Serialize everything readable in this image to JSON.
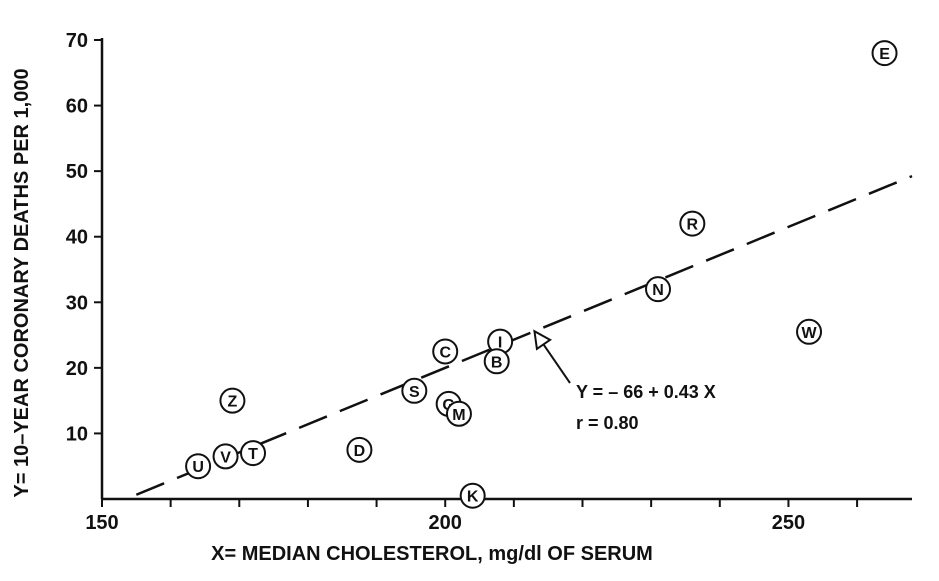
{
  "chart_data": {
    "type": "scatter",
    "xlabel": "X= MEDIAN CHOLESTEROL, mg/dl OF SERUM",
    "ylabel": "Y= 10–YEAR CORONARY DEATHS PER 1,000",
    "xlim": [
      150,
      268
    ],
    "ylim": [
      0,
      70
    ],
    "x_ticks": [
      150,
      200,
      250
    ],
    "y_ticks": [
      10,
      20,
      30,
      40,
      50,
      60,
      70
    ],
    "grid": false,
    "points": [
      {
        "label": "E",
        "x": 264.0,
        "y": 68.0
      },
      {
        "label": "R",
        "x": 236.0,
        "y": 42.0
      },
      {
        "label": "N",
        "x": 231.0,
        "y": 32.0
      },
      {
        "label": "W",
        "x": 253.0,
        "y": 25.5
      },
      {
        "label": "I",
        "x": 208.0,
        "y": 24.0
      },
      {
        "label": "C",
        "x": 200.0,
        "y": 22.5
      },
      {
        "label": "B",
        "x": 207.5,
        "y": 21.0
      },
      {
        "label": "S",
        "x": 195.5,
        "y": 16.5
      },
      {
        "label": "Z",
        "x": 169.0,
        "y": 15.0
      },
      {
        "label": "G",
        "x": 200.5,
        "y": 14.5
      },
      {
        "label": "M",
        "x": 202.0,
        "y": 13.0
      },
      {
        "label": "D",
        "x": 187.5,
        "y": 7.5
      },
      {
        "label": "T",
        "x": 172.0,
        "y": 7.0
      },
      {
        "label": "V",
        "x": 168.0,
        "y": 6.5
      },
      {
        "label": "U",
        "x": 164.0,
        "y": 5.0
      },
      {
        "label": "K",
        "x": 204.0,
        "y": 0.5
      }
    ],
    "regression": {
      "intercept": -66,
      "slope": 0.43,
      "x_range": [
        155,
        268
      ],
      "style": "dashed"
    },
    "annotations": {
      "equation": "Y = – 66 + 0.43 X",
      "correlation": "r = 0.80"
    }
  }
}
